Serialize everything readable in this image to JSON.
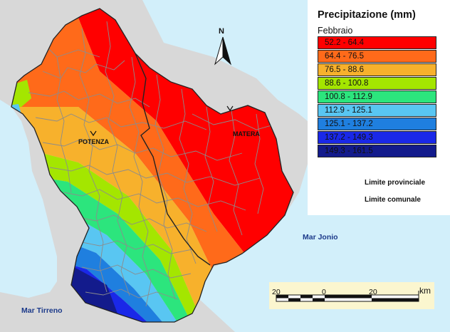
{
  "legend": {
    "title": "Precipitazione (mm)",
    "subtitle": "Febbraio",
    "classes": [
      {
        "label": "52.2 - 64.4",
        "color": "#ff0000"
      },
      {
        "label": "64.4 - 76.5",
        "color": "#ff6a1a"
      },
      {
        "label": "76.5 - 88.6",
        "color": "#f7b12c"
      },
      {
        "label": "88.6 - 100.8",
        "color": "#a4e600"
      },
      {
        "label": "100.8 - 112.9",
        "color": "#2ce57d"
      },
      {
        "label": "112.9 - 125.1",
        "color": "#59c6f2"
      },
      {
        "label": "125.1 - 137.2",
        "color": "#1f7fdf"
      },
      {
        "label": "137.2 - 149.3",
        "color": "#1a28e8"
      },
      {
        "label": "149.3 - 161.5",
        "color": "#131b8c"
      }
    ],
    "lines": [
      {
        "label": "Limite provinciale",
        "color": "#222222"
      },
      {
        "label": "Limite comunale",
        "color": "#9a9a9a"
      }
    ]
  },
  "places": {
    "potenza": "POTENZA",
    "matera": "MATERA"
  },
  "seas": {
    "jonio": "Mar Jonio",
    "tirreno": "Mar Tirreno"
  },
  "north_arrow": {
    "label": "N"
  },
  "scale_bar": {
    "ticks": [
      "20",
      "0",
      "20"
    ],
    "unit": "km"
  },
  "colors": {
    "sea": "#d2effa",
    "land_outside": "#d8d8d8",
    "border_comunale": "#8c8c8c",
    "border_provinciale": "#222222"
  }
}
